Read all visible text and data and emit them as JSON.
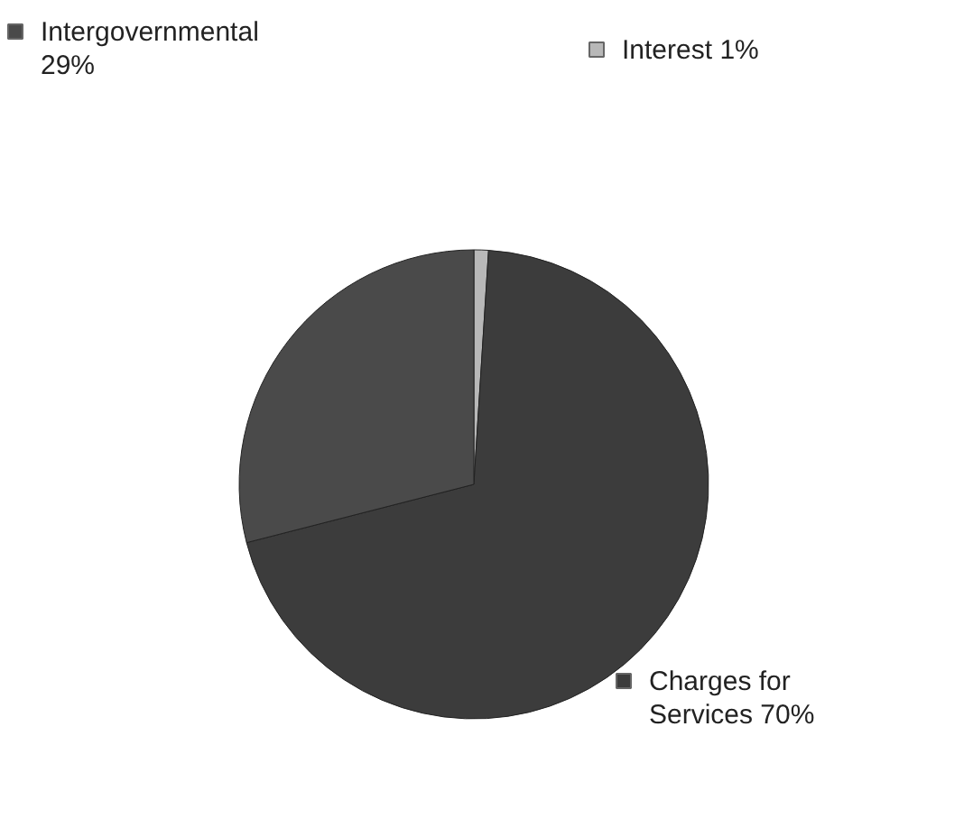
{
  "chart_data": {
    "type": "pie",
    "categories": [
      "Interest",
      "Charges for Services",
      "Intergovernmental"
    ],
    "values": [
      1,
      70,
      29
    ],
    "value_labels": [
      "1%",
      "70%",
      "29%"
    ],
    "colors": [
      "#b8b8b8",
      "#3c3c3c",
      "#4a4a4a"
    ],
    "legend": "top left"
  }
}
